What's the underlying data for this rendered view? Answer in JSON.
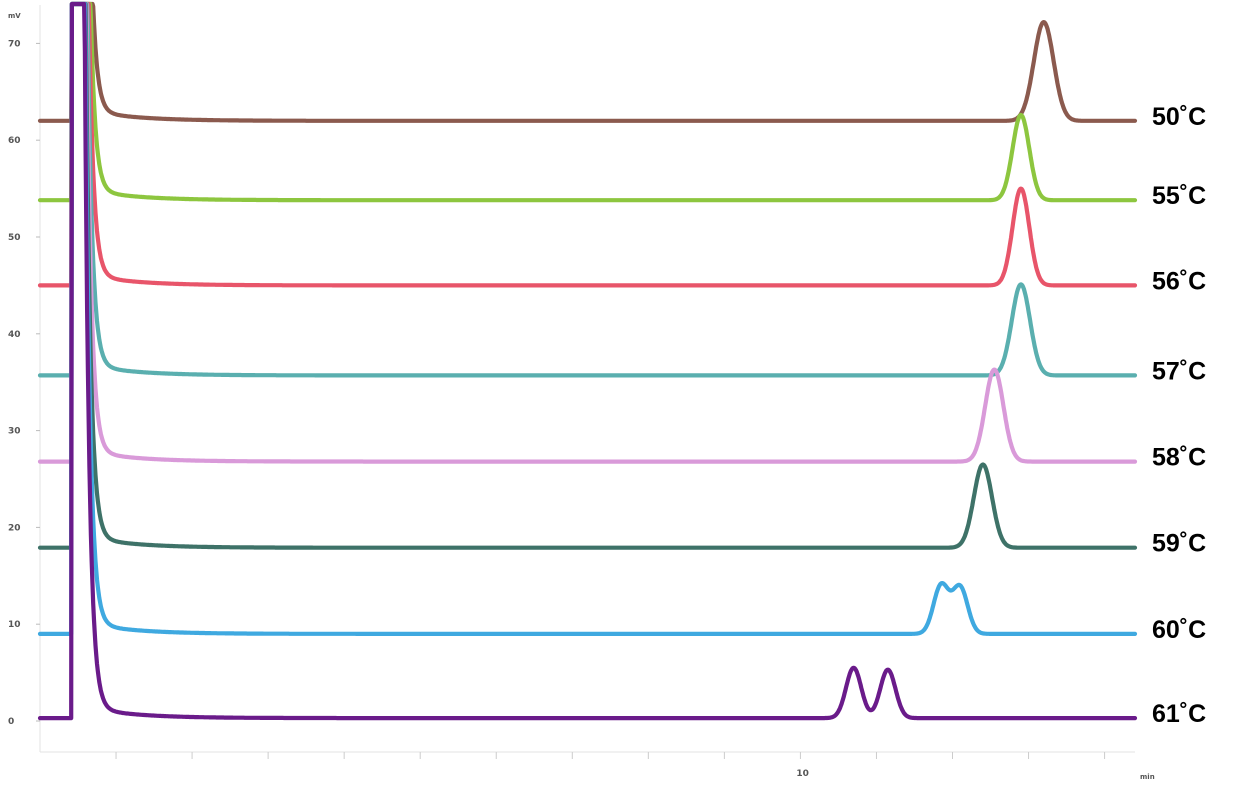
{
  "chart_data": {
    "type": "line",
    "y_unit": "mV",
    "x_unit": "min",
    "ylim": [
      -2,
      78
    ],
    "xlim": [
      0,
      14.4
    ],
    "y_ticks": [
      0,
      10,
      20,
      30,
      40,
      50,
      60,
      70
    ],
    "y_tick_labels": [
      "0",
      "10",
      "20",
      "30",
      "40",
      "50",
      "60",
      "70"
    ],
    "x_ticks": [
      1,
      2,
      3,
      4,
      5,
      6,
      7,
      8,
      9,
      10,
      11,
      12,
      13,
      14
    ],
    "x_tick_labels": [
      {
        "x": 10,
        "label": "10"
      }
    ],
    "grid": false,
    "legend": "inline labels at right end of each trace",
    "series": [
      {
        "name": "50˚C",
        "color": "#8B5A4E",
        "baseline": 62.0,
        "injection_offset": 0.0,
        "peaks": [
          {
            "t": 13.2,
            "h": 10.2,
            "w": 0.13
          }
        ]
      },
      {
        "name": "55˚C",
        "color": "#8DC63F",
        "baseline": 53.8,
        "injection_offset": 0.0,
        "peaks": [
          {
            "t": 12.9,
            "h": 8.8,
            "w": 0.11
          }
        ]
      },
      {
        "name": "56˚C",
        "color": "#E8556A",
        "baseline": 45.0,
        "injection_offset": 0.0,
        "peaks": [
          {
            "t": 12.9,
            "h": 10.0,
            "w": 0.11
          }
        ]
      },
      {
        "name": "57˚C",
        "color": "#5AAFAF",
        "baseline": 35.7,
        "injection_offset": 0.0,
        "peaks": [
          {
            "t": 12.9,
            "h": 9.4,
            "w": 0.12
          }
        ]
      },
      {
        "name": "58˚C",
        "color": "#D99AD9",
        "baseline": 26.8,
        "injection_offset": 0.0,
        "peaks": [
          {
            "t": 12.55,
            "h": 9.5,
            "w": 0.12
          }
        ]
      },
      {
        "name": "59˚C",
        "color": "#3E7268",
        "baseline": 17.9,
        "injection_offset": 0.0,
        "peaks": [
          {
            "t": 12.4,
            "h": 8.6,
            "w": 0.12
          }
        ]
      },
      {
        "name": "60˚C",
        "color": "#3FA9E0",
        "baseline": 9.0,
        "injection_offset": 0.0,
        "peaks": [
          {
            "t": 11.85,
            "h": 5.0,
            "w": 0.1
          },
          {
            "t": 12.1,
            "h": 4.8,
            "w": 0.1
          }
        ]
      },
      {
        "name": "61˚C",
        "color": "#6A1B8A",
        "baseline": 0.3,
        "injection_offset": 0.0,
        "peaks": [
          {
            "t": 10.7,
            "h": 5.2,
            "w": 0.1
          },
          {
            "t": 11.15,
            "h": 5.0,
            "w": 0.1
          }
        ]
      }
    ]
  }
}
